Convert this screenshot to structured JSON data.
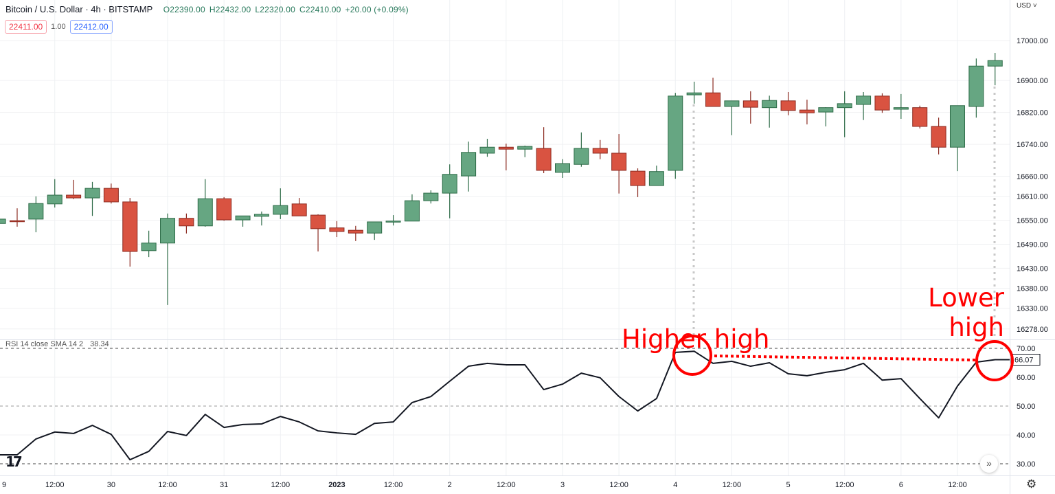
{
  "header": {
    "symbol": "Bitcoin / U.S. Dollar · 4h · BITSTAMP",
    "open": "O22390.00",
    "high": "H22432.00",
    "low": "L22320.00",
    "close": "C22410.00",
    "change": "+20.00 (+0.09%)",
    "sell_price": "22411.00",
    "spread": "1.00",
    "buy_price": "22412.00"
  },
  "currency_menu": "USD ˅",
  "rsi_legend": {
    "name": "RSI 14 close SMA 14 2",
    "value": "38.34"
  },
  "rsi_last_label": "66.07",
  "scroll_button": "»",
  "settings_icon": "gear-icon",
  "logo_text": "17",
  "colors": {
    "up": "#66a682",
    "up_border": "#2d6b47",
    "down": "#d95341",
    "down_border": "#8b2a20",
    "annotation": "#ff0000",
    "rsi_line": "#131722"
  },
  "annotations": {
    "left_label": "Higher high",
    "right_label_line1": "Lower",
    "right_label_line2": "high"
  },
  "chart_data": [
    {
      "type": "candlestick",
      "title": "Bitcoin / U.S. Dollar · 4h · BITSTAMP",
      "ylim": [
        16230,
        17060
      ],
      "y_ticks": [
        "17000.00",
        "16900.00",
        "16820.00",
        "16740.00",
        "16660.00",
        "16610.00",
        "16550.00",
        "16490.00",
        "16430.00",
        "16380.00",
        "16330.00",
        "16278.00"
      ],
      "x_ticks": [
        "9",
        "12:00",
        "30",
        "12:00",
        "31",
        "12:00",
        "2023",
        "12:00",
        "2",
        "12:00",
        "3",
        "12:00",
        "4",
        "12:00",
        "5",
        "12:00",
        "6",
        "12:00"
      ],
      "grid": true,
      "ohlc": [
        [
          16542,
          16555,
          16541,
          16553
        ],
        [
          16549,
          16580,
          16534,
          16548
        ],
        [
          16553,
          16610,
          16520,
          16592
        ],
        [
          16591,
          16653,
          16582,
          16613
        ],
        [
          16613,
          16651,
          16603,
          16606
        ],
        [
          16606,
          16646,
          16561,
          16630
        ],
        [
          16630,
          16642,
          16592,
          16596
        ],
        [
          16596,
          16606,
          16434,
          16472
        ],
        [
          16474,
          16524,
          16458,
          16493
        ],
        [
          16493,
          16567,
          16338,
          16555
        ],
        [
          16555,
          16567,
          16517,
          16536
        ],
        [
          16536,
          16653,
          16534,
          16604
        ],
        [
          16604,
          16608,
          16549,
          16551
        ],
        [
          16551,
          16561,
          16534,
          16561
        ],
        [
          16560,
          16572,
          16537,
          16565
        ],
        [
          16565,
          16630,
          16553,
          16587
        ],
        [
          16591,
          16606,
          16561,
          16561
        ],
        [
          16563,
          16565,
          16472,
          16529
        ],
        [
          16531,
          16548,
          16508,
          16522
        ],
        [
          16525,
          16536,
          16498,
          16518
        ],
        [
          16518,
          16546,
          16501,
          16546
        ],
        [
          16546,
          16563,
          16537,
          16548
        ],
        [
          16548,
          16615,
          16548,
          16599
        ],
        [
          16599,
          16625,
          16592,
          16618
        ],
        [
          16618,
          16690,
          16555,
          16665
        ],
        [
          16661,
          16747,
          16622,
          16720
        ],
        [
          16718,
          16754,
          16709,
          16733
        ],
        [
          16733,
          16742,
          16675,
          16728
        ],
        [
          16728,
          16737,
          16708,
          16735
        ],
        [
          16730,
          16783,
          16668,
          16675
        ],
        [
          16670,
          16703,
          16656,
          16692
        ],
        [
          16690,
          16770,
          16684,
          16730
        ],
        [
          16730,
          16751,
          16703,
          16718
        ],
        [
          16718,
          16766,
          16617,
          16675
        ],
        [
          16673,
          16680,
          16608,
          16637
        ],
        [
          16637,
          16687,
          16637,
          16672
        ],
        [
          16675,
          16869,
          16654,
          16861
        ],
        [
          16864,
          16897,
          16842,
          16869
        ],
        [
          16869,
          16907,
          16835,
          16835
        ],
        [
          16835,
          16849,
          16763,
          16849
        ],
        [
          16849,
          16873,
          16792,
          16833
        ],
        [
          16832,
          16862,
          16782,
          16850
        ],
        [
          16849,
          16871,
          16813,
          16825
        ],
        [
          16826,
          16852,
          16790,
          16819
        ],
        [
          16821,
          16833,
          16785,
          16832
        ],
        [
          16832,
          16873,
          16758,
          16842
        ],
        [
          16840,
          16871,
          16801,
          16861
        ],
        [
          16861,
          16868,
          16819,
          16826
        ],
        [
          16828,
          16866,
          16804,
          16832
        ],
        [
          16832,
          16837,
          16780,
          16785
        ],
        [
          16785,
          16807,
          16715,
          16733
        ],
        [
          16733,
          16837,
          16673,
          16837
        ],
        [
          16835,
          16955,
          16807,
          16936
        ],
        [
          16936,
          16969,
          16888,
          16950
        ]
      ]
    },
    {
      "type": "line",
      "title": "RSI 14 close SMA 14 2",
      "ylim": [
        27,
        73
      ],
      "y_ticks": [
        "70.00",
        "60.00",
        "50.00",
        "40.00",
        "30.00"
      ],
      "bands": [
        70,
        50,
        30
      ],
      "values": [
        33.1,
        33.1,
        38.6,
        41.0,
        40.5,
        43.3,
        40.2,
        31.4,
        34.3,
        41.2,
        39.8,
        47.1,
        42.6,
        43.6,
        43.8,
        46.4,
        44.5,
        41.4,
        40.7,
        40.2,
        44.0,
        44.5,
        51.2,
        53.3,
        58.6,
        63.8,
        64.8,
        64.3,
        64.3,
        55.7,
        57.6,
        61.4,
        59.8,
        53.3,
        48.3,
        52.6,
        68.6,
        69.0,
        64.8,
        65.5,
        63.8,
        65.0,
        61.2,
        60.5,
        61.7,
        62.6,
        64.8,
        59.0,
        59.5,
        52.6,
        45.9,
        56.9,
        65.2,
        66.07
      ]
    }
  ]
}
